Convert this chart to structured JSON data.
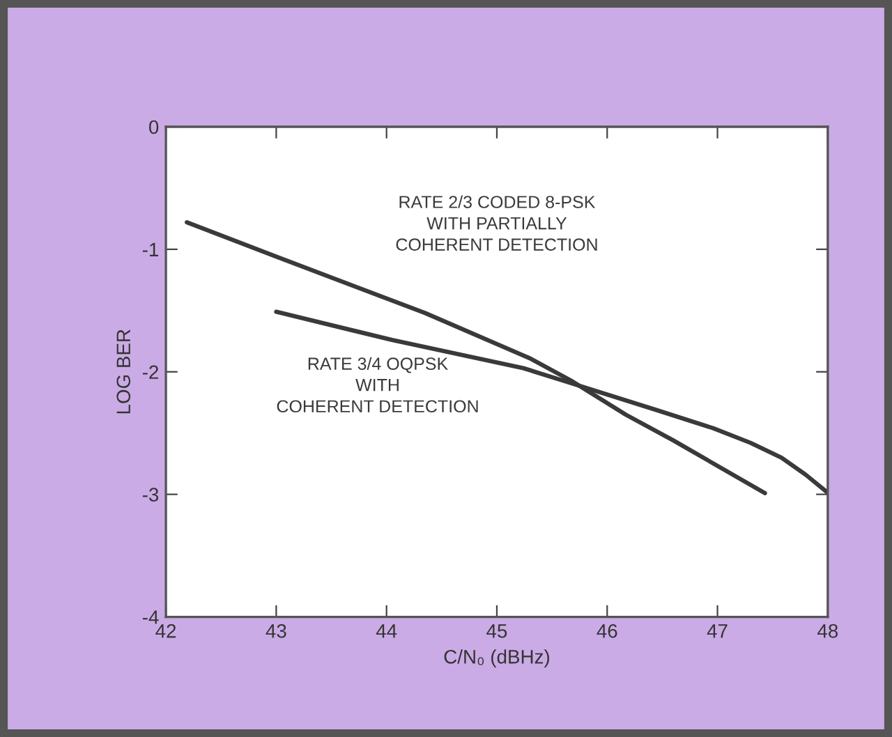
{
  "chart_data": {
    "type": "line",
    "xlabel": "C/N₀ (dBHz)",
    "ylabel": "LOG BER",
    "xlim": [
      42,
      48
    ],
    "xticks": [
      42,
      43,
      44,
      45,
      46,
      47,
      48
    ],
    "ylim": [
      -4,
      0
    ],
    "yticks": [
      -4,
      -3,
      -2,
      -1,
      0
    ],
    "grid": false,
    "legend": false,
    "marker": "none",
    "line_style": "solid",
    "series": [
      {
        "name": "RATE 2/3 CODED 8-PSK\nWITH PARTIALLY\nCOHERENT DETECTION",
        "color": "#3a3a3a",
        "x": [
          42.19,
          43.0,
          44.35,
          45.3,
          45.67,
          46.17,
          46.6,
          47.43
        ],
        "values": [
          -0.78,
          -1.06,
          -1.52,
          -1.89,
          -2.07,
          -2.35,
          -2.56,
          -2.99
        ]
      },
      {
        "name": "RATE 3/4 OQPSK\nWITH\nCOHERENT DETECTION",
        "color": "#3a3a3a",
        "x": [
          43.0,
          44.05,
          45.24,
          45.63,
          46.44,
          46.96,
          47.3,
          47.58,
          47.8,
          47.99
        ],
        "values": [
          -1.51,
          -1.74,
          -1.97,
          -2.08,
          -2.31,
          -2.46,
          -2.58,
          -2.7,
          -2.84,
          -2.98
        ]
      }
    ]
  }
}
